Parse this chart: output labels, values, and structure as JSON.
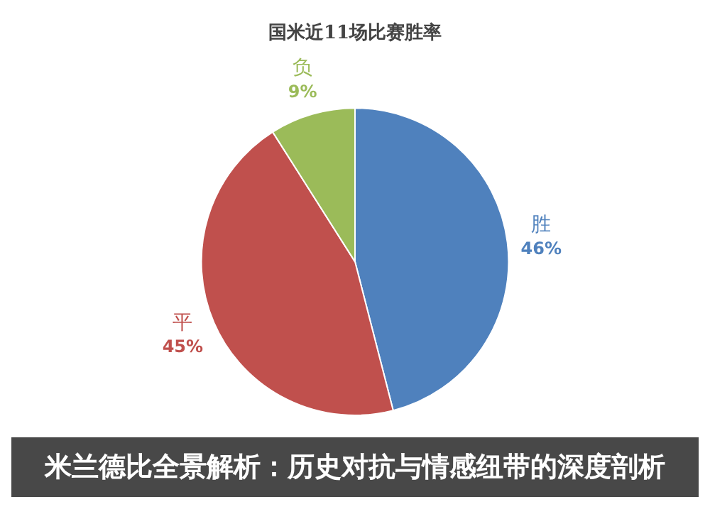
{
  "chart_data": {
    "type": "pie",
    "title": "国米近11场比赛胜率",
    "subtitle": "米兰德比全景解析：历史对抗与情感纽带的深度剖析",
    "categories": [
      "胜",
      "平",
      "负"
    ],
    "values": [
      46,
      45,
      9
    ],
    "colors": [
      "#4f81bd",
      "#c0504d",
      "#9bbb59"
    ],
    "value_labels": [
      "46%",
      "45%",
      "9%"
    ],
    "legend": false
  }
}
